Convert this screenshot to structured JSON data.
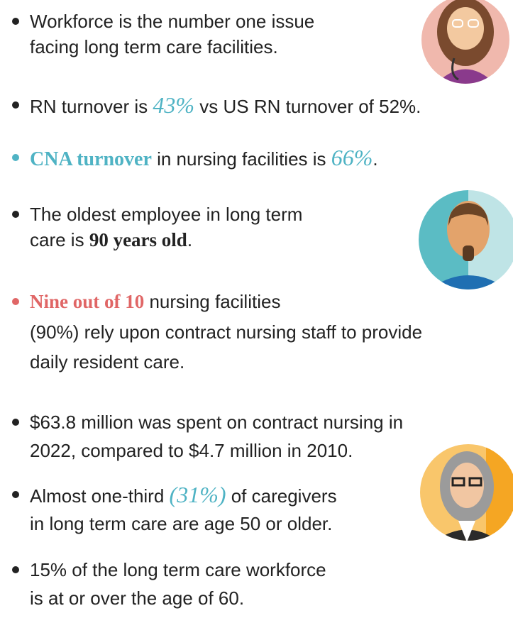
{
  "bullets": [
    {
      "lines": [
        [
          "Workforce is the number one issue"
        ],
        [
          "facing long term care facilities."
        ]
      ]
    },
    {
      "lines": [
        [
          "RN turnover is ",
          "43%",
          " vs US RN turnover of 52%."
        ]
      ]
    },
    {
      "lines": [
        [
          "CNA turnover",
          " in nursing facilities is ",
          "66%",
          "."
        ]
      ]
    },
    {
      "lines": [
        [
          "The oldest employee in long term"
        ],
        [
          "care is ",
          "90 years old",
          "."
        ]
      ]
    },
    {
      "lines": [
        [
          "Nine out of 10",
          " nursing facilities"
        ],
        [
          "(90%) rely upon contract nursing staff to provide"
        ],
        [
          "daily resident care."
        ]
      ]
    },
    {
      "lines": [
        [
          "$63.8 million was spent on contract nursing in"
        ],
        [
          "2022, compared to $4.7 million in 2010."
        ]
      ]
    },
    {
      "lines": [
        [
          "Almost one-third ",
          "(31%)",
          " of caregivers"
        ],
        [
          "in long term care are age 50 or older."
        ]
      ]
    },
    {
      "lines": [
        [
          "15% of the long term care workforce"
        ],
        [
          "is at or over the age of 60."
        ]
      ]
    }
  ]
}
